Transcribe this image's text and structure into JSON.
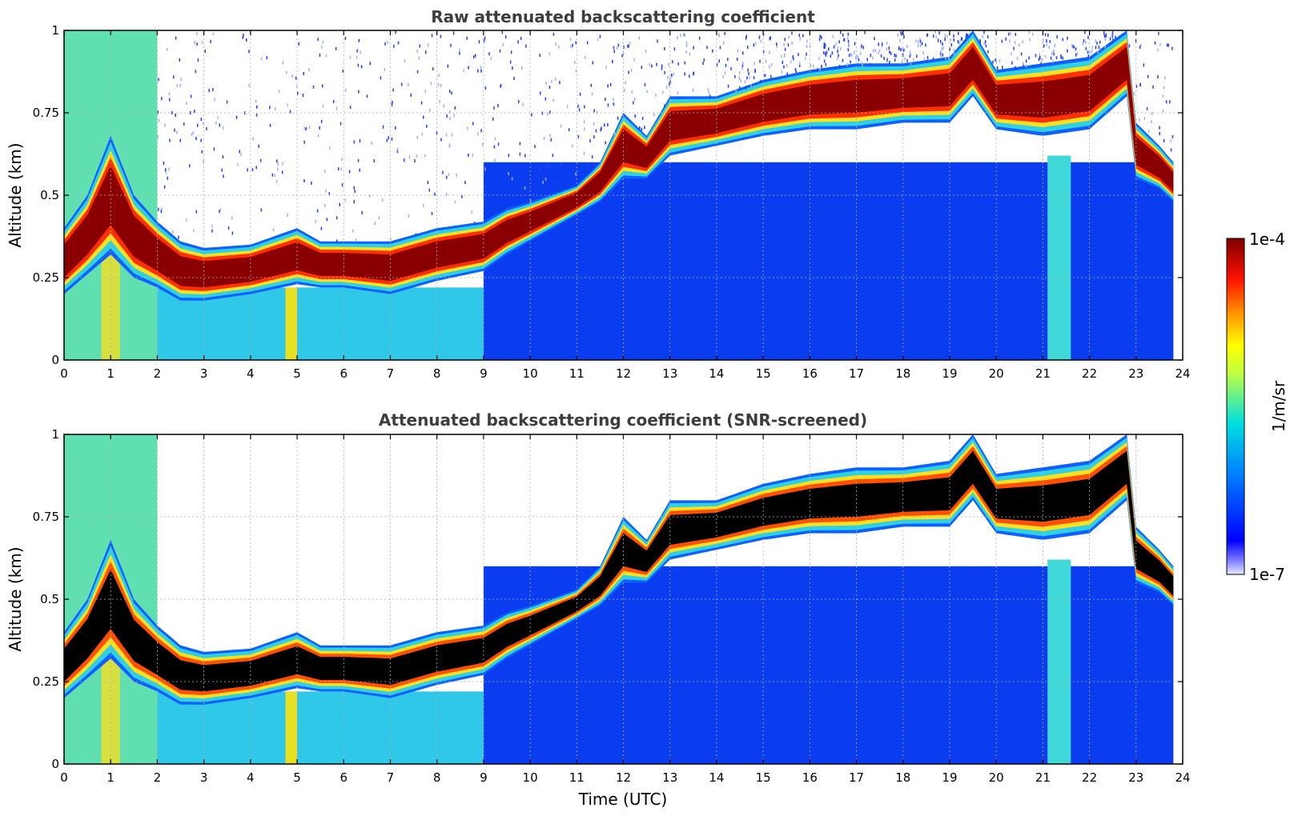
{
  "chart_data": [
    {
      "type": "heatmap",
      "title": "Raw attenuated backscattering coefficient",
      "xlabel": "",
      "ylabel": "Altitude (km)",
      "xlim": [
        0,
        24
      ],
      "ylim": [
        0,
        1
      ],
      "xticks": [
        "0",
        "1",
        "2",
        "3",
        "4",
        "5",
        "6",
        "7",
        "8",
        "9",
        "10",
        "11",
        "12",
        "13",
        "14",
        "15",
        "16",
        "17",
        "18",
        "19",
        "20",
        "21",
        "22",
        "23",
        "24"
      ],
      "yticks": [
        "0",
        "0.25",
        "0.5",
        "0.75",
        "1"
      ],
      "grid": true,
      "screened": false,
      "layer_top_km": {
        "time_utc": [
          0,
          0.5,
          1.0,
          1.5,
          2.0,
          2.5,
          3,
          4,
          5,
          5.5,
          6,
          7,
          8,
          9,
          9.5,
          10,
          11,
          11.5,
          12,
          12.5,
          13,
          14,
          15,
          16,
          17,
          18,
          19,
          19.5,
          20,
          21,
          22,
          22.8,
          23,
          23.5,
          23.8
        ],
        "altitude_km": [
          0.4,
          0.5,
          0.68,
          0.5,
          0.42,
          0.36,
          0.34,
          0.35,
          0.4,
          0.36,
          0.36,
          0.36,
          0.4,
          0.42,
          0.46,
          0.48,
          0.53,
          0.6,
          0.75,
          0.68,
          0.8,
          0.8,
          0.85,
          0.88,
          0.9,
          0.9,
          0.92,
          1.0,
          0.88,
          0.9,
          0.92,
          1.0,
          0.72,
          0.65,
          0.6
        ]
      },
      "layer_bottom_km": {
        "time_utc": [
          0,
          0.5,
          1.0,
          1.5,
          2.0,
          2.5,
          3,
          4,
          5,
          5.5,
          6,
          7,
          8,
          9,
          9.5,
          10,
          11,
          11.5,
          12,
          12.5,
          13,
          14,
          15,
          16,
          17,
          18,
          19,
          19.5,
          20,
          21,
          22,
          22.8,
          23,
          23.5,
          23.8
        ],
        "altitude_km": [
          0.2,
          0.26,
          0.32,
          0.25,
          0.22,
          0.18,
          0.18,
          0.2,
          0.23,
          0.22,
          0.22,
          0.2,
          0.24,
          0.27,
          0.32,
          0.36,
          0.44,
          0.48,
          0.55,
          0.55,
          0.62,
          0.65,
          0.68,
          0.7,
          0.7,
          0.72,
          0.72,
          0.8,
          0.7,
          0.68,
          0.7,
          0.8,
          0.55,
          0.52,
          0.48
        ]
      }
    },
    {
      "type": "heatmap",
      "title": "Attenuated backscattering coefficient (SNR-screened)",
      "xlabel": "Time (UTC)",
      "ylabel": "Altitude (km)",
      "xlim": [
        0,
        24
      ],
      "ylim": [
        0,
        1
      ],
      "xticks": [
        "0",
        "1",
        "2",
        "3",
        "4",
        "5",
        "6",
        "7",
        "8",
        "9",
        "10",
        "11",
        "12",
        "13",
        "14",
        "15",
        "16",
        "17",
        "18",
        "19",
        "20",
        "21",
        "22",
        "23",
        "24"
      ],
      "yticks": [
        "0",
        "0.25",
        "0.5",
        "0.75",
        "1"
      ],
      "grid": true,
      "screened": true,
      "layer_top_km": {
        "time_utc": [
          0,
          0.5,
          1.0,
          1.5,
          2.0,
          2.5,
          3,
          4,
          5,
          5.5,
          6,
          7,
          8,
          9,
          9.5,
          10,
          11,
          11.5,
          12,
          12.5,
          13,
          14,
          15,
          16,
          17,
          18,
          19,
          19.5,
          20,
          21,
          22,
          22.8,
          23,
          23.5,
          23.8
        ],
        "altitude_km": [
          0.4,
          0.5,
          0.68,
          0.5,
          0.42,
          0.36,
          0.34,
          0.35,
          0.4,
          0.36,
          0.36,
          0.36,
          0.4,
          0.42,
          0.46,
          0.48,
          0.53,
          0.6,
          0.75,
          0.68,
          0.8,
          0.8,
          0.85,
          0.88,
          0.9,
          0.9,
          0.92,
          1.0,
          0.88,
          0.9,
          0.92,
          1.0,
          0.72,
          0.65,
          0.6
        ]
      },
      "layer_bottom_km": {
        "time_utc": [
          0,
          0.5,
          1.0,
          1.5,
          2.0,
          2.5,
          3,
          4,
          5,
          5.5,
          6,
          7,
          8,
          9,
          9.5,
          10,
          11,
          11.5,
          12,
          12.5,
          13,
          14,
          15,
          16,
          17,
          18,
          19,
          19.5,
          20,
          21,
          22,
          22.8,
          23,
          23.5,
          23.8
        ],
        "altitude_km": [
          0.2,
          0.26,
          0.32,
          0.25,
          0.22,
          0.18,
          0.18,
          0.2,
          0.23,
          0.22,
          0.22,
          0.2,
          0.24,
          0.27,
          0.32,
          0.36,
          0.44,
          0.48,
          0.55,
          0.55,
          0.62,
          0.65,
          0.68,
          0.7,
          0.7,
          0.72,
          0.72,
          0.8,
          0.7,
          0.68,
          0.7,
          0.8,
          0.55,
          0.52,
          0.48
        ]
      }
    }
  ],
  "colorbar": {
    "label": "1/m/sr",
    "max_label": "1e-4",
    "min_label": "1e-7",
    "colormap": "jet",
    "range": [
      1e-07,
      0.0001
    ],
    "scale": "log"
  },
  "colors": {
    "saturated_screened": "#000000",
    "background": "#ffffff",
    "title_text": "#3d3d3d"
  }
}
